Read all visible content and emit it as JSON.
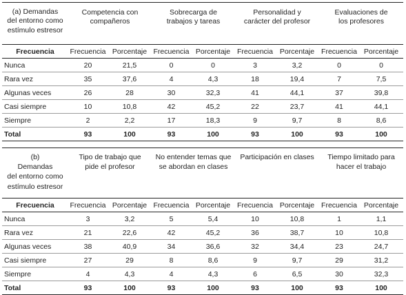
{
  "table_a": {
    "corner": [
      "(a) Demandas",
      "del entorno como",
      "estímulo estresor"
    ],
    "groups": [
      [
        "Competencia con",
        "compañeros"
      ],
      [
        "Sobrecarga de",
        "trabajos y tareas"
      ],
      [
        "Personalidad y",
        "carácter del profesor"
      ],
      [
        "Evaluaciones de",
        "los profesores"
      ]
    ],
    "row_header": "Frecuencia",
    "sub_headers": [
      "Frecuencia",
      "Porcentaje",
      "Frecuencia",
      "Porcentaje",
      "Frecuencia",
      "Porcentaje",
      "Frecuencia",
      "Porcentaje"
    ],
    "rows": [
      {
        "label": "Nunca",
        "values": [
          "20",
          "21,5",
          "0",
          "0",
          "3",
          "3,2",
          "0",
          "0"
        ]
      },
      {
        "label": "Rara vez",
        "values": [
          "35",
          "37,6",
          "4",
          "4,3",
          "18",
          "19,4",
          "7",
          "7,5"
        ]
      },
      {
        "label": "Algunas veces",
        "values": [
          "26",
          "28",
          "30",
          "32,3",
          "41",
          "44,1",
          "37",
          "39,8"
        ]
      },
      {
        "label": "Casi siempre",
        "values": [
          "10",
          "10,8",
          "42",
          "45,2",
          "22",
          "23,7",
          "41",
          "44,1"
        ]
      },
      {
        "label": "Siempre",
        "values": [
          "2",
          "2,2",
          "17",
          "18,3",
          "9",
          "9,7",
          "8",
          "8,6"
        ]
      }
    ],
    "total": {
      "label": "Total",
      "values": [
        "93",
        "100",
        "93",
        "100",
        "93",
        "100",
        "93",
        "100"
      ]
    }
  },
  "table_b": {
    "corner": [
      "(b)",
      "Demandas",
      "del entorno como",
      "estímulo estresor"
    ],
    "groups": [
      [
        "Tipo de trabajo que",
        "pide el profesor"
      ],
      [
        "No entender temas que",
        "se abordan en clases"
      ],
      [
        "Participación en clases"
      ],
      [
        "Tiempo limitado para",
        "hacer el trabajo"
      ]
    ],
    "row_header": "Frecuencia",
    "sub_headers": [
      "Frecuencia",
      "Porcentaje",
      "Frecuencia",
      "Porcentaje",
      "Frecuencia",
      "Porcentaje",
      "Frecuencia",
      "Porcentaje"
    ],
    "rows": [
      {
        "label": "Nunca",
        "values": [
          "3",
          "3,2",
          "5",
          "5,4",
          "10",
          "10,8",
          "1",
          "1,1"
        ]
      },
      {
        "label": "Rara vez",
        "values": [
          "21",
          "22,6",
          "42",
          "45,2",
          "36",
          "38,7",
          "10",
          "10,8"
        ]
      },
      {
        "label": "Algunas veces",
        "values": [
          "38",
          "40,9",
          "34",
          "36,6",
          "32",
          "34,4",
          "23",
          "24,7"
        ]
      },
      {
        "label": "Casi siempre",
        "values": [
          "27",
          "29",
          "8",
          "8,6",
          "9",
          "9,7",
          "29",
          "31,2"
        ]
      },
      {
        "label": "Siempre",
        "values": [
          "4",
          "4,3",
          "4",
          "4,3",
          "6",
          "6,5",
          "30",
          "32,3"
        ]
      }
    ],
    "total": {
      "label": "Total",
      "values": [
        "93",
        "100",
        "93",
        "100",
        "93",
        "100",
        "93",
        "100"
      ]
    }
  }
}
